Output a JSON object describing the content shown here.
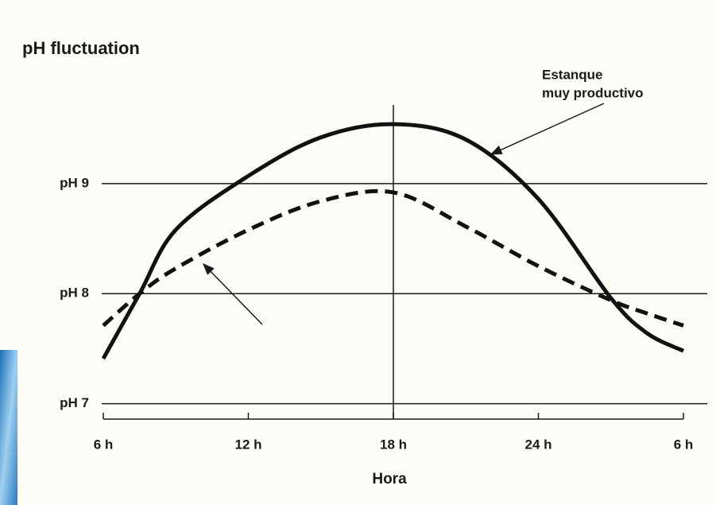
{
  "chart_data": {
    "type": "line",
    "title": "pH fluctuation",
    "x_label": "Hora",
    "annotation": [
      "Estanque",
      "muy productivo"
    ],
    "x": [
      6,
      7.5,
      9,
      12,
      15,
      18,
      21,
      24,
      27,
      28.5,
      30
    ],
    "series": [
      {
        "color": "#111111",
        "dash": false,
        "values": [
          7.41,
          8.0,
          8.58,
          9.07,
          9.42,
          9.54,
          9.4,
          8.86,
          7.96,
          7.64,
          7.48
        ]
      },
      {
        "color": "#111111",
        "dash": true,
        "values": [
          7.71,
          8.0,
          8.23,
          8.58,
          8.84,
          8.92,
          8.61,
          8.25,
          7.94,
          7.82,
          7.71
        ]
      }
    ],
    "xlim": [
      6,
      30
    ],
    "xticks": [
      {
        "value": 6,
        "label": "6 h"
      },
      {
        "value": 12,
        "label": "12 h"
      },
      {
        "value": 18,
        "label": "18 h"
      },
      {
        "value": 24,
        "label": "24 h"
      },
      {
        "value": 30,
        "label": "6 h"
      }
    ],
    "ylim": [
      6.86,
      9.7
    ],
    "yticks": [
      {
        "value": 7,
        "label": "pH 7"
      },
      {
        "value": 8,
        "label": "pH 8"
      },
      {
        "value": 9,
        "label": "pH 9"
      }
    ],
    "grid": true,
    "vline": 18
  }
}
